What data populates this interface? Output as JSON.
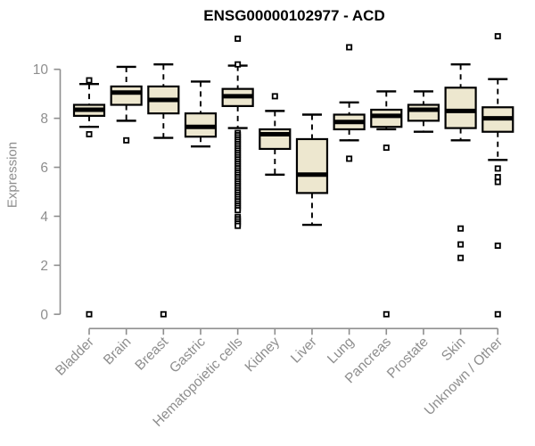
{
  "chart_data": {
    "type": "boxplot",
    "title": "ENSG00000102977 - ACD",
    "ylabel": "Expression",
    "xlabel": "",
    "ylim": [
      0,
      10
    ],
    "yticks": [
      0,
      2,
      4,
      6,
      8,
      10
    ],
    "grid": false,
    "legend": "none",
    "categories": [
      "Bladder",
      "Brain",
      "Breast",
      "Gastric",
      "Hematopoietic cells",
      "Kidney",
      "Liver",
      "Lung",
      "Pancreas",
      "Prostate",
      "Skin",
      "Unknown / Other"
    ],
    "series": [
      {
        "category": "Bladder",
        "whisker_low": 7.65,
        "q1": 8.1,
        "median": 8.35,
        "q3": 8.55,
        "whisker_high": 9.4,
        "outliers": [
          9.55,
          7.35,
          0
        ]
      },
      {
        "category": "Brain",
        "whisker_low": 7.9,
        "q1": 8.55,
        "median": 9.05,
        "q3": 9.3,
        "whisker_high": 10.1,
        "outliers": [
          7.1
        ]
      },
      {
        "category": "Breast",
        "whisker_low": 7.2,
        "q1": 8.2,
        "median": 8.75,
        "q3": 9.3,
        "whisker_high": 10.2,
        "outliers": [
          0
        ]
      },
      {
        "category": "Gastric",
        "whisker_low": 6.85,
        "q1": 7.25,
        "median": 7.65,
        "q3": 8.2,
        "whisker_high": 9.5,
        "outliers": []
      },
      {
        "category": "Hematopoietic cells",
        "whisker_low": 7.6,
        "q1": 8.5,
        "median": 8.9,
        "q3": 9.2,
        "whisker_high": 10.15,
        "outliers": [
          11.25,
          10.2,
          7.4,
          7.31,
          7.22,
          7.13,
          7.04,
          6.95,
          6.86,
          6.77,
          6.68,
          6.59,
          6.5,
          6.41,
          6.32,
          6.23,
          6.14,
          6.05,
          5.96,
          5.87,
          5.78,
          5.69,
          5.6,
          5.51,
          5.42,
          5.33,
          5.24,
          5.15,
          5.06,
          4.97,
          4.88,
          4.79,
          4.7,
          4.61,
          4.52,
          4.43,
          4.34,
          4.25,
          3.97,
          3.88,
          3.79,
          3.7,
          3.61
        ]
      },
      {
        "category": "Kidney",
        "whisker_low": 5.7,
        "q1": 6.75,
        "median": 7.35,
        "q3": 7.55,
        "whisker_high": 8.3,
        "outliers": [
          8.9
        ]
      },
      {
        "category": "Liver",
        "whisker_low": 3.65,
        "q1": 4.95,
        "median": 5.7,
        "q3": 7.15,
        "whisker_high": 8.15,
        "outliers": []
      },
      {
        "category": "Lung",
        "whisker_low": 7.1,
        "q1": 7.55,
        "median": 7.85,
        "q3": 8.15,
        "whisker_high": 8.65,
        "outliers": [
          10.9,
          6.35
        ]
      },
      {
        "category": "Pancreas",
        "whisker_low": 7.55,
        "q1": 7.65,
        "median": 8.1,
        "q3": 8.35,
        "whisker_high": 9.1,
        "outliers": [
          6.8,
          0
        ]
      },
      {
        "category": "Prostate",
        "whisker_low": 7.45,
        "q1": 7.9,
        "median": 8.35,
        "q3": 8.55,
        "whisker_high": 9.1,
        "outliers": []
      },
      {
        "category": "Skin",
        "whisker_low": 7.1,
        "q1": 7.6,
        "median": 8.3,
        "q3": 9.25,
        "whisker_high": 10.2,
        "outliers": [
          3.5,
          2.85,
          2.3
        ]
      },
      {
        "category": "Unknown / Other",
        "whisker_low": 6.3,
        "q1": 7.45,
        "median": 8.0,
        "q3": 8.45,
        "whisker_high": 9.6,
        "outliers": [
          11.35,
          5.95,
          5.6,
          5.4,
          2.8,
          0
        ]
      }
    ],
    "style": {
      "box_fill": "#EDE7CF",
      "box_stroke": "#000000",
      "axis_color": "#8E8E8E",
      "title_color": "#000000"
    }
  }
}
